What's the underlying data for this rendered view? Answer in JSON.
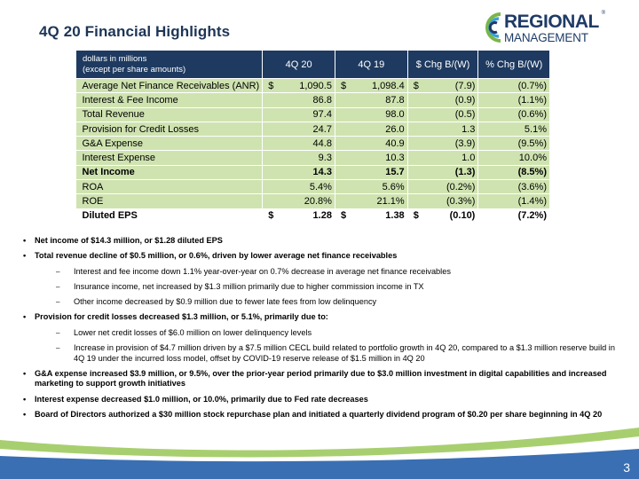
{
  "slide": {
    "title": "4Q 20 Financial Highlights",
    "page_number": "3"
  },
  "logo": {
    "line1": "REGIONAL",
    "line2": "MANAGEMENT",
    "reg_mark": "®",
    "colors": {
      "blue": "#1f3b67",
      "green": "#7ab648",
      "light_blue": "#3da0d8"
    }
  },
  "table": {
    "header_label_line1": "dollars in millions",
    "header_label_line2": "(except per share amounts)",
    "columns": [
      "4Q 20",
      "4Q 19",
      "$ Chg B/(W)",
      "% Chg B/(W)"
    ],
    "rows": [
      {
        "label": "Average Net Finance Receivables (ANR)",
        "c1_prefix": "$",
        "c1": "1,090.5",
        "c2_prefix": "$",
        "c2": "1,098.4",
        "c3_prefix": "$",
        "c3": "(7.9)",
        "c4": "(0.7%)",
        "style": "green"
      },
      {
        "label": "Interest & Fee Income",
        "c1_prefix": "",
        "c1": "86.8",
        "c2_prefix": "",
        "c2": "87.8",
        "c3_prefix": "",
        "c3": "(0.9)",
        "c4": "(1.1%)",
        "style": "green"
      },
      {
        "label": "Total Revenue",
        "c1_prefix": "",
        "c1": "97.4",
        "c2_prefix": "",
        "c2": "98.0",
        "c3_prefix": "",
        "c3": "(0.5)",
        "c4": "(0.6%)",
        "style": "green"
      },
      {
        "label": "Provision for Credit Losses",
        "c1_prefix": "",
        "c1": "24.7",
        "c2_prefix": "",
        "c2": "26.0",
        "c3_prefix": "",
        "c3": "1.3",
        "c4": "5.1%",
        "style": "green"
      },
      {
        "label": "G&A Expense",
        "c1_prefix": "",
        "c1": "44.8",
        "c2_prefix": "",
        "c2": "40.9",
        "c3_prefix": "",
        "c3": "(3.9)",
        "c4": "(9.5%)",
        "style": "green"
      },
      {
        "label": "Interest Expense",
        "c1_prefix": "",
        "c1": "9.3",
        "c2_prefix": "",
        "c2": "10.3",
        "c3_prefix": "",
        "c3": "1.0",
        "c4": "10.0%",
        "style": "green"
      },
      {
        "label": "Net Income",
        "c1_prefix": "",
        "c1": "14.3",
        "c2_prefix": "",
        "c2": "15.7",
        "c3_prefix": "",
        "c3": "(1.3)",
        "c4": "(8.5%)",
        "style": "green-bold"
      },
      {
        "label": "ROA",
        "c1_prefix": "",
        "c1": "5.4%",
        "c2_prefix": "",
        "c2": "5.6%",
        "c3_prefix": "",
        "c3": "(0.2%)",
        "c4": "(3.6%)",
        "style": "green"
      },
      {
        "label": "ROE",
        "c1_prefix": "",
        "c1": "20.8%",
        "c2_prefix": "",
        "c2": "21.1%",
        "c3_prefix": "",
        "c3": "(0.3%)",
        "c4": "(1.4%)",
        "style": "green"
      },
      {
        "label": "Diluted EPS",
        "c1_prefix": "$",
        "c1": "1.28",
        "c2_prefix": "$",
        "c2": "1.38",
        "c3_prefix": "$",
        "c3": "(0.10)",
        "c4": "(7.2%)",
        "style": "white-bold"
      }
    ]
  },
  "notes": {
    "b1": "Net income of $14.3 million, or $1.28 diluted EPS",
    "b2": "Total revenue decline of $0.5 million, or 0.6%, driven by lower average net finance receivables",
    "b2_s1": "Interest and fee income down 1.1% year-over-year on 0.7% decrease in average net finance receivables",
    "b2_s2": "Insurance income, net increased by $1.3 million primarily due to higher commission income in TX",
    "b2_s3": "Other income decreased by $0.9 million due to fewer late fees from low delinquency",
    "b3": "Provision for credit losses decreased $1.3 million, or 5.1%, primarily due to:",
    "b3_s1": "Lower net credit losses of $6.0 million on lower delinquency levels",
    "b3_s2": "Increase in provision of $4.7 million driven by a $7.5 million CECL build related to portfolio growth in 4Q 20, compared to a $1.3 million reserve build in 4Q 19 under the incurred loss model, offset by COVID-19 reserve release of $1.5 million in 4Q 20",
    "b4": "G&A expense increased $3.9 million, or 9.5%, over the prior-year period primarily due to $3.0 million investment in digital capabilities and increased marketing to support growth initiatives",
    "b5": "Interest expense decreased $1.0 million, or 10.0%, primarily due to Fed rate decreases",
    "b6": "Board of Directors authorized a $30 million stock repurchase plan and initiated a quarterly dividend program of $0.20 per share beginning in 4Q 20",
    "bullet_glyph": "•",
    "dash_glyph": "–"
  },
  "colors": {
    "header_bg": "#1e3a60",
    "row_green": "#cfe3b0",
    "title": "#1d3556",
    "footer_blue": "#3a6fb3",
    "footer_green": "#a8cf6f"
  }
}
